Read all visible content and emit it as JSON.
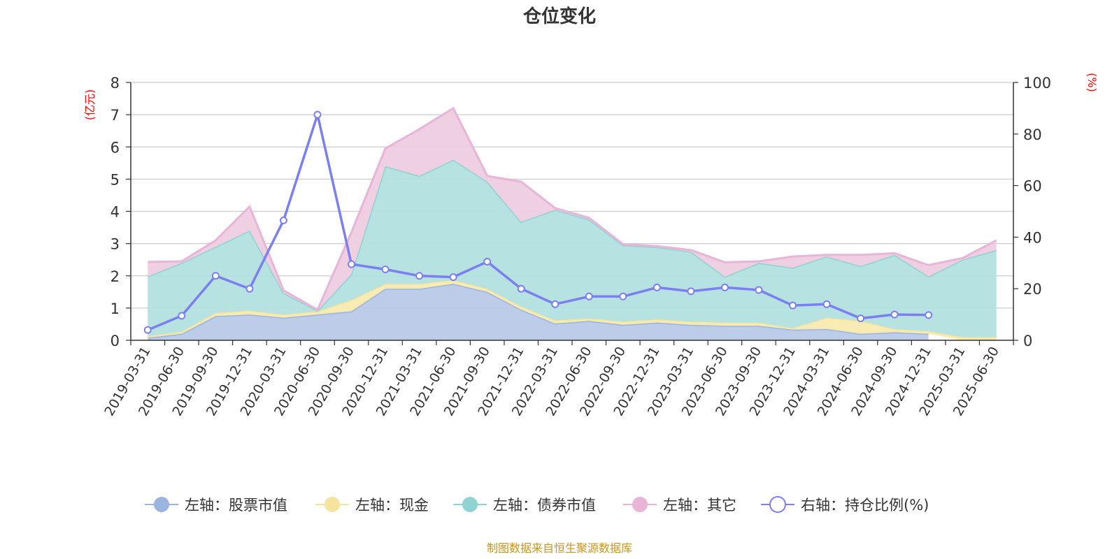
{
  "chart_data": {
    "type": "area",
    "title": "仓位变化",
    "left_axis": {
      "unit": "(亿元)",
      "ylim": [
        0,
        8
      ],
      "ticks": [
        0,
        1,
        2,
        3,
        4,
        5,
        6,
        7,
        8
      ]
    },
    "right_axis": {
      "unit": "(%)",
      "ylim": [
        0,
        100
      ],
      "ticks": [
        0,
        20,
        40,
        60,
        80,
        100
      ]
    },
    "grid": true,
    "legend_position": "bottom",
    "categories": [
      "2019-03-31",
      "2019-06-30",
      "2019-09-30",
      "2019-12-31",
      "2020-03-31",
      "2020-06-30",
      "2020-09-30",
      "2020-12-31",
      "2021-03-31",
      "2021-06-30",
      "2021-09-30",
      "2021-12-31",
      "2022-03-31",
      "2022-06-30",
      "2022-09-30",
      "2022-12-31",
      "2023-03-31",
      "2023-06-30",
      "2023-09-30",
      "2023-12-31",
      "2024-03-31",
      "2024-06-30",
      "2024-09-30",
      "2024-12-31",
      "2025-03-31",
      "2025-06-30"
    ],
    "stacked_series": [
      {
        "name": "左轴：股票市值",
        "axis": "left",
        "color": "#9bb5e0",
        "line_color": "#9bb5e0",
        "fill": "#b8c9e8",
        "values": [
          0.08,
          0.2,
          0.75,
          0.8,
          0.7,
          0.8,
          0.9,
          1.6,
          1.6,
          1.75,
          1.5,
          0.95,
          0.52,
          0.6,
          0.48,
          0.55,
          0.48,
          0.45,
          0.45,
          0.33,
          0.35,
          0.2,
          0.25,
          0.2,
          null,
          null
        ]
      },
      {
        "name": "左轴：现金",
        "axis": "left",
        "color": "#f5e4a0",
        "line_color": "#f5e4a0",
        "fill": "#f8eab0",
        "values": [
          0.05,
          0.07,
          0.1,
          0.12,
          0.1,
          0.1,
          0.35,
          0.15,
          0.15,
          0.12,
          0.1,
          0.1,
          0.1,
          0.08,
          0.1,
          0.1,
          0.1,
          0.1,
          0.1,
          0.05,
          0.35,
          0.4,
          0.1,
          0.08,
          0.1,
          0.1
        ]
      },
      {
        "name": "左轴：债券市值",
        "axis": "left",
        "color": "#8fd3d3",
        "line_color": "#8fd3d3",
        "fill": "#b3e0e0",
        "values": [
          1.85,
          2.13,
          2.05,
          2.48,
          0.67,
          0.02,
          0.8,
          3.65,
          3.35,
          3.73,
          3.32,
          2.62,
          3.43,
          3.07,
          2.37,
          2.24,
          2.17,
          1.42,
          1.85,
          1.87,
          1.9,
          1.7,
          2.3,
          1.7,
          2.4,
          2.7
        ]
      },
      {
        "name": "左轴：其它",
        "axis": "left",
        "color": "#e8b4d8",
        "line_color": "#e8b4d8",
        "fill": "#eecde2",
        "values": [
          0.45,
          0.05,
          0.2,
          0.75,
          0.08,
          0.02,
          1.3,
          0.55,
          1.45,
          1.6,
          0.18,
          1.25,
          0.05,
          0.05,
          0.03,
          0.03,
          0.05,
          0.45,
          0.05,
          0.35,
          0.05,
          0.35,
          0.05,
          0.35,
          0.05,
          0.3
        ]
      }
    ],
    "line_series": {
      "name": "右轴：持仓比例(%)",
      "axis": "right",
      "color": "#7b7ff0",
      "values": [
        4,
        9.5,
        25,
        20,
        46.5,
        87.5,
        29.5,
        27.5,
        25,
        24.5,
        30.5,
        20,
        14,
        17,
        17,
        20.5,
        19,
        20.5,
        19.5,
        13.5,
        14,
        8.5,
        10,
        9.8,
        null,
        null
      ]
    },
    "source_note": "制图数据来自恒生聚源数据库"
  }
}
